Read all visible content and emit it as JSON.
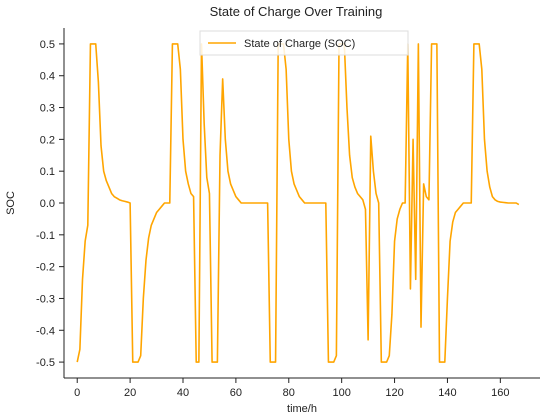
{
  "chart_data": {
    "type": "line",
    "title": "State of Charge Over Training",
    "xlabel": "time/h",
    "ylabel": "SOC",
    "xlim": [
      -5,
      175
    ],
    "ylim": [
      -0.55,
      0.55
    ],
    "xticks": [
      0,
      20,
      40,
      60,
      80,
      100,
      120,
      140,
      160
    ],
    "yticks": [
      -0.5,
      -0.4,
      -0.3,
      -0.2,
      -0.1,
      0.0,
      0.1,
      0.2,
      0.3,
      0.4,
      0.5
    ],
    "ytick_labels": [
      "-0.5",
      "-0.4",
      "-0.3",
      "-0.2",
      "-0.1",
      "0.0",
      "0.1",
      "0.2",
      "0.3",
      "0.4",
      "0.5"
    ],
    "grid": false,
    "legend_position": "top-center",
    "series": [
      {
        "name": "State of Charge (SOC)",
        "color": "#FFA500",
        "x": [
          0,
          1,
          2,
          3,
          4,
          5,
          6,
          7,
          8,
          9,
          10,
          11,
          12,
          13,
          14,
          15,
          16,
          17,
          18,
          19,
          20,
          21,
          22,
          23,
          24,
          25,
          26,
          27,
          28,
          29,
          30,
          31,
          32,
          33,
          34,
          35,
          36,
          37,
          38,
          39,
          40,
          41,
          42,
          43,
          44,
          45,
          46,
          47,
          48,
          49,
          50,
          51,
          52,
          53,
          54,
          55,
          56,
          57,
          58,
          59,
          60,
          61,
          62,
          63,
          64,
          65,
          66,
          67,
          68,
          69,
          70,
          71,
          72,
          73,
          74,
          75,
          76,
          77,
          78,
          79,
          80,
          81,
          82,
          83,
          84,
          85,
          86,
          87,
          88,
          89,
          90,
          91,
          92,
          93,
          94,
          95,
          96,
          97,
          98,
          99,
          100,
          101,
          102,
          103,
          104,
          105,
          106,
          107,
          108,
          109,
          110,
          111,
          112,
          113,
          114,
          115,
          116,
          117,
          118,
          119,
          120,
          121,
          122,
          123,
          124,
          125,
          126,
          127,
          128,
          129,
          130,
          131,
          132,
          133,
          134,
          135,
          136,
          137,
          138,
          139,
          140,
          141,
          142,
          143,
          144,
          145,
          146,
          147,
          148,
          149,
          150,
          151,
          152,
          153,
          154,
          155,
          156,
          157,
          158,
          159,
          160,
          161,
          162,
          163,
          164,
          165,
          166,
          167
        ],
        "values": [
          -0.5,
          -0.46,
          -0.24,
          -0.12,
          -0.07,
          0.5,
          0.5,
          0.5,
          0.38,
          0.18,
          0.1,
          0.07,
          0.05,
          0.03,
          0.02,
          0.015,
          0.01,
          0.007,
          0.005,
          0.003,
          0.0,
          -0.5,
          -0.5,
          -0.5,
          -0.48,
          -0.3,
          -0.18,
          -0.11,
          -0.07,
          -0.05,
          -0.03,
          -0.02,
          -0.01,
          0.0,
          0.0,
          0.0,
          0.5,
          0.5,
          0.5,
          0.42,
          0.2,
          0.1,
          0.06,
          0.03,
          0.02,
          -0.5,
          -0.5,
          0.5,
          0.25,
          0.08,
          0.03,
          -0.5,
          -0.5,
          -0.5,
          0.15,
          0.39,
          0.2,
          0.1,
          0.06,
          0.04,
          0.02,
          0.01,
          0.0,
          0.0,
          0.0,
          0.0,
          0.0,
          0.0,
          0.0,
          0.0,
          0.0,
          0.0,
          0.0,
          -0.5,
          -0.5,
          -0.5,
          0.5,
          0.5,
          0.5,
          0.42,
          0.2,
          0.1,
          0.06,
          0.04,
          0.02,
          0.01,
          0.0,
          0.0,
          0.0,
          0.0,
          0.0,
          0.0,
          0.0,
          0.0,
          0.0,
          -0.5,
          -0.5,
          -0.5,
          -0.48,
          0.5,
          0.5,
          0.5,
          0.3,
          0.15,
          0.08,
          0.05,
          0.03,
          0.02,
          0.01,
          -0.02,
          -0.43,
          0.21,
          0.1,
          0.03,
          0.0,
          -0.5,
          -0.5,
          -0.5,
          -0.48,
          -0.35,
          -0.12,
          -0.05,
          -0.02,
          0.0,
          0.0,
          0.5,
          -0.27,
          0.2,
          -0.24,
          0.5,
          -0.39,
          0.06,
          0.02,
          0.01,
          0.5,
          0.5,
          0.5,
          -0.5,
          -0.5,
          -0.5,
          -0.3,
          -0.12,
          -0.06,
          -0.03,
          -0.02,
          -0.01,
          0.0,
          0.0,
          0.0,
          0.0,
          0.5,
          0.5,
          0.5,
          0.42,
          0.2,
          0.1,
          0.05,
          0.02,
          0.01,
          0.005,
          0.003,
          0.002,
          0.001,
          0.0,
          0.0,
          0.0,
          0.0,
          -0.005
        ]
      }
    ]
  }
}
